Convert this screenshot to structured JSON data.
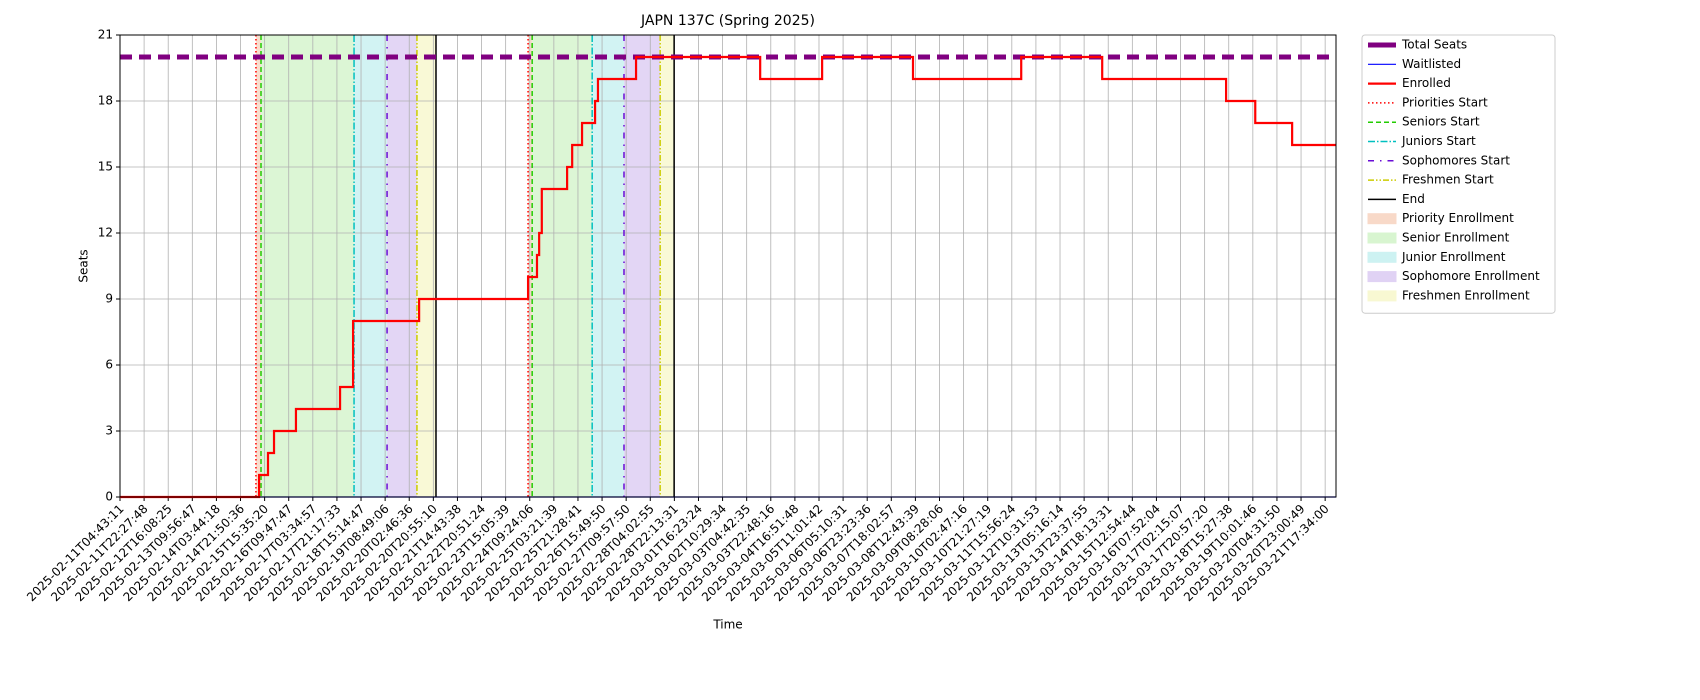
{
  "chart_data": {
    "type": "step",
    "title": "JAPN 137C (Spring 2025)",
    "x_label": "Time",
    "y_label": "Seats",
    "xlim": [
      0,
      50.45
    ],
    "xticks": [
      {
        "value": 0,
        "label": "2025-02-11T04:43:11"
      },
      {
        "value": 1,
        "label": "2025-02-11T22:27:48"
      },
      {
        "value": 2,
        "label": "2025-02-12T16:08:25"
      },
      {
        "value": 3,
        "label": "2025-02-13T09:56:47"
      },
      {
        "value": 4,
        "label": "2025-02-14T03:44:18"
      },
      {
        "value": 5,
        "label": "2025-02-14T21:50:36"
      },
      {
        "value": 6,
        "label": "2025-02-15T15:35:20"
      },
      {
        "value": 7,
        "label": "2025-02-16T09:47:47"
      },
      {
        "value": 8,
        "label": "2025-02-17T03:34:57"
      },
      {
        "value": 9,
        "label": "2025-02-17T21:17:33"
      },
      {
        "value": 10,
        "label": "2025-02-18T15:14:47"
      },
      {
        "value": 11,
        "label": "2025-02-19T08:49:06"
      },
      {
        "value": 12,
        "label": "2025-02-20T02:46:36"
      },
      {
        "value": 13,
        "label": "2025-02-20T20:55:10"
      },
      {
        "value": 14,
        "label": "2025-02-21T14:43:38"
      },
      {
        "value": 15,
        "label": "2025-02-22T20:51:24"
      },
      {
        "value": 16,
        "label": "2025-02-23T15:05:39"
      },
      {
        "value": 17,
        "label": "2025-02-24T09:24:06"
      },
      {
        "value": 18,
        "label": "2025-02-25T03:21:39"
      },
      {
        "value": 19,
        "label": "2025-02-25T21:28:41"
      },
      {
        "value": 20,
        "label": "2025-02-26T15:49:50"
      },
      {
        "value": 21,
        "label": "2025-02-27T09:57:50"
      },
      {
        "value": 22,
        "label": "2025-02-28T04:02:55"
      },
      {
        "value": 23,
        "label": "2025-02-28T22:13:31"
      },
      {
        "value": 24,
        "label": "2025-03-01T16:23:24"
      },
      {
        "value": 25,
        "label": "2025-03-02T10:29:34"
      },
      {
        "value": 26,
        "label": "2025-03-03T04:42:35"
      },
      {
        "value": 27,
        "label": "2025-03-03T22:48:16"
      },
      {
        "value": 28,
        "label": "2025-03-04T16:51:48"
      },
      {
        "value": 29,
        "label": "2025-03-05T11:01:42"
      },
      {
        "value": 30,
        "label": "2025-03-06T05:10:31"
      },
      {
        "value": 31,
        "label": "2025-03-06T23:23:36"
      },
      {
        "value": 32,
        "label": "2025-03-07T18:02:57"
      },
      {
        "value": 33,
        "label": "2025-03-08T12:43:39"
      },
      {
        "value": 34,
        "label": "2025-03-09T08:28:06"
      },
      {
        "value": 35,
        "label": "2025-03-10T02:47:16"
      },
      {
        "value": 36,
        "label": "2025-03-10T21:27:19"
      },
      {
        "value": 37,
        "label": "2025-03-11T15:56:24"
      },
      {
        "value": 38,
        "label": "2025-03-12T10:31:53"
      },
      {
        "value": 39,
        "label": "2025-03-13T05:16:14"
      },
      {
        "value": 40,
        "label": "2025-03-13T23:37:55"
      },
      {
        "value": 41,
        "label": "2025-03-14T18:13:31"
      },
      {
        "value": 42,
        "label": "2025-03-15T12:54:44"
      },
      {
        "value": 43,
        "label": "2025-03-16T07:52:04"
      },
      {
        "value": 44,
        "label": "2025-03-17T02:15:07"
      },
      {
        "value": 45,
        "label": "2025-03-17T20:57:20"
      },
      {
        "value": 46,
        "label": "2025-03-18T15:27:38"
      },
      {
        "value": 47,
        "label": "2025-03-19T10:01:46"
      },
      {
        "value": 48,
        "label": "2025-03-20T04:31:50"
      },
      {
        "value": 49,
        "label": "2025-03-20T23:00:49"
      },
      {
        "value": 50,
        "label": "2025-03-21T17:34:00"
      }
    ],
    "ylim": [
      0,
      21
    ],
    "yticks": [
      0,
      3,
      6,
      9,
      12,
      15,
      18,
      21
    ],
    "grid": true,
    "legend": "outside upper right",
    "x": [
      0,
      5.77,
      6.14,
      6.39,
      7.3,
      9.13,
      9.67,
      12.41,
      16.93,
      17.3,
      17.39,
      17.5,
      18.55,
      18.76,
      19.17,
      19.71,
      19.83,
      21.41,
      26.56,
      29.13,
      32.9,
      37.39,
      40.75,
      45.89,
      47.1,
      48.63,
      50.45
    ],
    "series": [
      {
        "name": "Total Seats",
        "color": "#800080",
        "style": "dashed-thick",
        "values": [
          20,
          20,
          20,
          20,
          20,
          20,
          20,
          20,
          20,
          20,
          20,
          20,
          20,
          20,
          20,
          20,
          20,
          20,
          20,
          20,
          20,
          20,
          20,
          20,
          20,
          20,
          20
        ]
      },
      {
        "name": "Waitlisted",
        "color": "#0000ff",
        "style": "solid-thin",
        "values": [
          0,
          0,
          0,
          0,
          0,
          0,
          0,
          0,
          0,
          0,
          0,
          0,
          0,
          0,
          0,
          0,
          0,
          0,
          0,
          0,
          0,
          0,
          0,
          0,
          0,
          0,
          0
        ]
      },
      {
        "name": "Enrolled",
        "color": "#ff0000",
        "style": "solid",
        "values": [
          0,
          1,
          2,
          3,
          4,
          5,
          8,
          9,
          10,
          11,
          12,
          14,
          15,
          16,
          17,
          18,
          19,
          20,
          19,
          20,
          19,
          20,
          19,
          18,
          17,
          16,
          16
        ]
      }
    ],
    "markers": [
      {
        "name": "Priorities Start",
        "color": "#ff0000",
        "dash": "1.5,2.5",
        "x": [
          5.64,
          16.93
        ]
      },
      {
        "name": "Seniors Start",
        "color": "#22cc00",
        "dash": "5,3",
        "x": [
          5.85,
          17.1
        ]
      },
      {
        "name": "Juniors Start",
        "color": "#00c0c0",
        "dash": "7,2,1.5,2",
        "x": [
          9.71,
          19.59
        ]
      },
      {
        "name": "Sophomores Start",
        "color": "#6a0dd6",
        "dash": "6,6,1.5,6",
        "x": [
          11.08,
          20.91
        ]
      },
      {
        "name": "Freshmen Start",
        "color": "#cccc00",
        "dash": "6,2,1.5,2,1.5,2",
        "x": [
          12.32,
          22.41
        ]
      },
      {
        "name": "End",
        "color": "#000000",
        "dash": "",
        "x": [
          13.11,
          22.99
        ]
      }
    ],
    "spans": [
      {
        "name": "Priority Enrollment",
        "color": "#f8d9c8",
        "ranges": [
          [
            5.64,
            5.85
          ],
          [
            16.93,
            17.1
          ]
        ]
      },
      {
        "name": "Senior Enrollment",
        "color": "#d8f5d0",
        "ranges": [
          [
            5.85,
            9.71
          ],
          [
            17.1,
            19.59
          ]
        ]
      },
      {
        "name": "Junior Enrollment",
        "color": "#cdf2f2",
        "ranges": [
          [
            9.71,
            11.08
          ],
          [
            19.59,
            20.91
          ]
        ]
      },
      {
        "name": "Sophomore Enrollment",
        "color": "#e0d2f4",
        "ranges": [
          [
            11.08,
            12.32
          ],
          [
            20.91,
            22.41
          ]
        ]
      },
      {
        "name": "Freshmen Enrollment",
        "color": "#f8f8d2",
        "ranges": [
          [
            12.32,
            13.11
          ],
          [
            22.41,
            22.99
          ]
        ]
      }
    ]
  }
}
